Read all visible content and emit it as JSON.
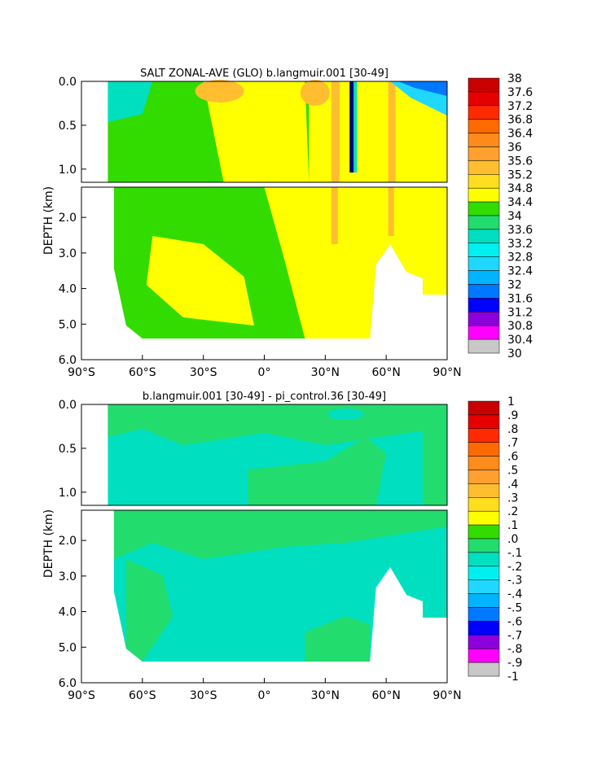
{
  "chart_data": [
    {
      "type": "heatmap",
      "title": "SALT ZONAL-AVE (GLO) b.langmuir.001 [30-49]",
      "ylabel": "DEPTH (km)",
      "x_ticks": [
        "90°S",
        "60°S",
        "30°S",
        "0°",
        "30°N",
        "60°N",
        "90°N"
      ],
      "y_ticks_upper": [
        "0.0",
        "0.5",
        "1.0"
      ],
      "y_ticks_lower": [
        "2.0",
        "3.0",
        "4.0",
        "5.0",
        "6.0"
      ],
      "xlim": [
        -90,
        90
      ],
      "ylim_km": [
        0,
        6
      ],
      "colorbar_labels": [
        "38",
        "37.6",
        "37.2",
        "36.8",
        "36.4",
        "36",
        "35.6",
        "35.2",
        "34.8",
        "34.4",
        "34",
        "33.6",
        "33.2",
        "32.8",
        "32.4",
        "32",
        "31.6",
        "31.2",
        "30.8",
        "30.4",
        "30"
      ],
      "colorbar_colors": [
        "#c80000",
        "#e60000",
        "#ff2a00",
        "#ff6a00",
        "#ff8c1a",
        "#ffa030",
        "#ffbe30",
        "#ffde20",
        "#ffff00",
        "#32dc00",
        "#22dc6e",
        "#00e0c0",
        "#00f0f0",
        "#20d8ff",
        "#00b4ff",
        "#0078ff",
        "#0000ff",
        "#8c00dc",
        "#ff00ff",
        "#c8c8c8",
        "#787878"
      ]
    },
    {
      "type": "heatmap",
      "title": "b.langmuir.001 [30-49] - pi_control.36 [30-49]",
      "ylabel": "DEPTH (km)",
      "x_ticks": [
        "90°S",
        "60°S",
        "30°S",
        "0°",
        "30°N",
        "60°N",
        "90°N"
      ],
      "y_ticks_upper": [
        "0.0",
        "0.5",
        "1.0"
      ],
      "y_ticks_lower": [
        "2.0",
        "3.0",
        "4.0",
        "5.0",
        "6.0"
      ],
      "xlim": [
        -90,
        90
      ],
      "ylim_km": [
        0,
        6
      ],
      "colorbar_labels": [
        "1",
        ".9",
        ".8",
        ".7",
        ".6",
        ".5",
        ".4",
        ".3",
        ".2",
        ".1",
        ".0",
        "-.1",
        "-.2",
        "-.3",
        "-.4",
        "-.5",
        "-.6",
        "-.7",
        "-.8",
        "-.9",
        "-1"
      ],
      "colorbar_colors": [
        "#c80000",
        "#e60000",
        "#ff2a00",
        "#ff6a00",
        "#ff8c1a",
        "#ffa030",
        "#ffbe30",
        "#ffde20",
        "#ffff00",
        "#32dc00",
        "#22dc6e",
        "#00e0c0",
        "#00f0f0",
        "#20d8ff",
        "#00b4ff",
        "#0078ff",
        "#0000ff",
        "#8c00dc",
        "#ff00ff",
        "#c8c8c8",
        "#787878"
      ]
    }
  ]
}
